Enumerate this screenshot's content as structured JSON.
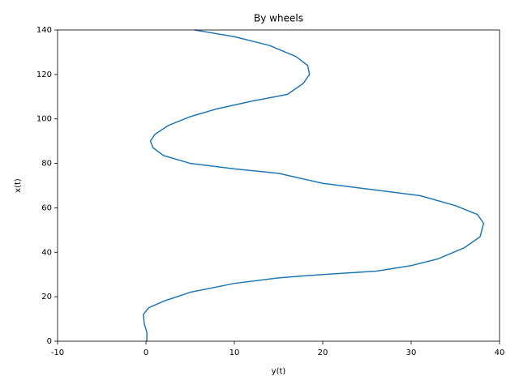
{
  "chart_data": {
    "type": "line",
    "title": "By wheels",
    "x_label": "y(t)",
    "y_label": "x(t)",
    "x": [
      0.1,
      0.1,
      -0.2,
      -0.3,
      0.3,
      2,
      5,
      10,
      15,
      20,
      26,
      30,
      33,
      36,
      37.8,
      38.2,
      37.5,
      35,
      31,
      25,
      20,
      15,
      10,
      5,
      2,
      0.8,
      0.5,
      1,
      2.5,
      5,
      8,
      12,
      16,
      17.8,
      18.5,
      18.3,
      17,
      14,
      10,
      5.5
    ],
    "series": [
      {
        "color": "#1f77b4",
        "values": [
          0,
          4,
          8,
          12,
          15,
          18,
          22,
          26,
          28.5,
          30,
          31.5,
          34,
          37,
          42,
          47,
          53,
          57,
          61,
          65.5,
          68.5,
          71,
          75.5,
          77.5,
          80,
          83.5,
          87,
          90,
          93,
          97,
          101,
          104.5,
          108,
          111,
          116,
          120,
          124,
          128,
          133,
          137,
          140
        ]
      }
    ],
    "xlim": [
      -10,
      40
    ],
    "ylim": [
      0,
      140
    ],
    "xticks": [
      -10,
      0,
      10,
      20,
      30,
      40
    ],
    "yticks": [
      0,
      20,
      40,
      60,
      80,
      100,
      120,
      140
    ]
  }
}
